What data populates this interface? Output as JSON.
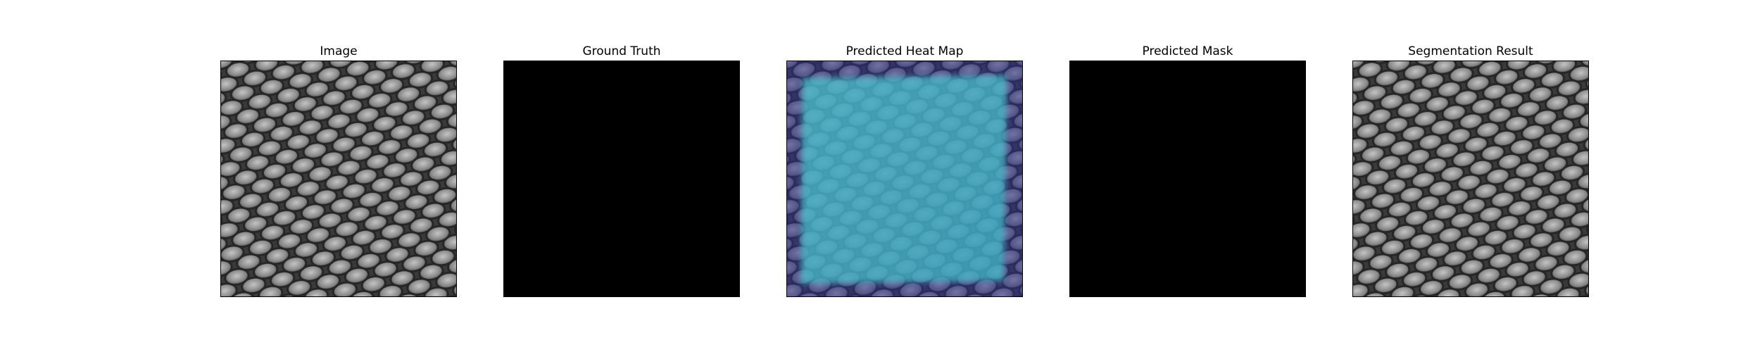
{
  "panels": [
    {
      "id": "image",
      "title": "Image",
      "kind": "texture"
    },
    {
      "id": "ground-truth",
      "title": "Ground Truth",
      "kind": "mask",
      "color": "#000000"
    },
    {
      "id": "heat-map",
      "title": "Predicted Heat Map",
      "kind": "heatmap",
      "colors": {
        "low": "#3b3f8c",
        "high": "#47c3c9"
      }
    },
    {
      "id": "predicted-mask",
      "title": "Predicted Mask",
      "kind": "mask",
      "color": "#000000"
    },
    {
      "id": "segmentation",
      "title": "Segmentation Result",
      "kind": "texture"
    }
  ],
  "texture": {
    "base": "#3c3c3c",
    "cell": "#8a8a8a",
    "highlight": "#b8b8b8",
    "outline": "#2a2a2a"
  }
}
